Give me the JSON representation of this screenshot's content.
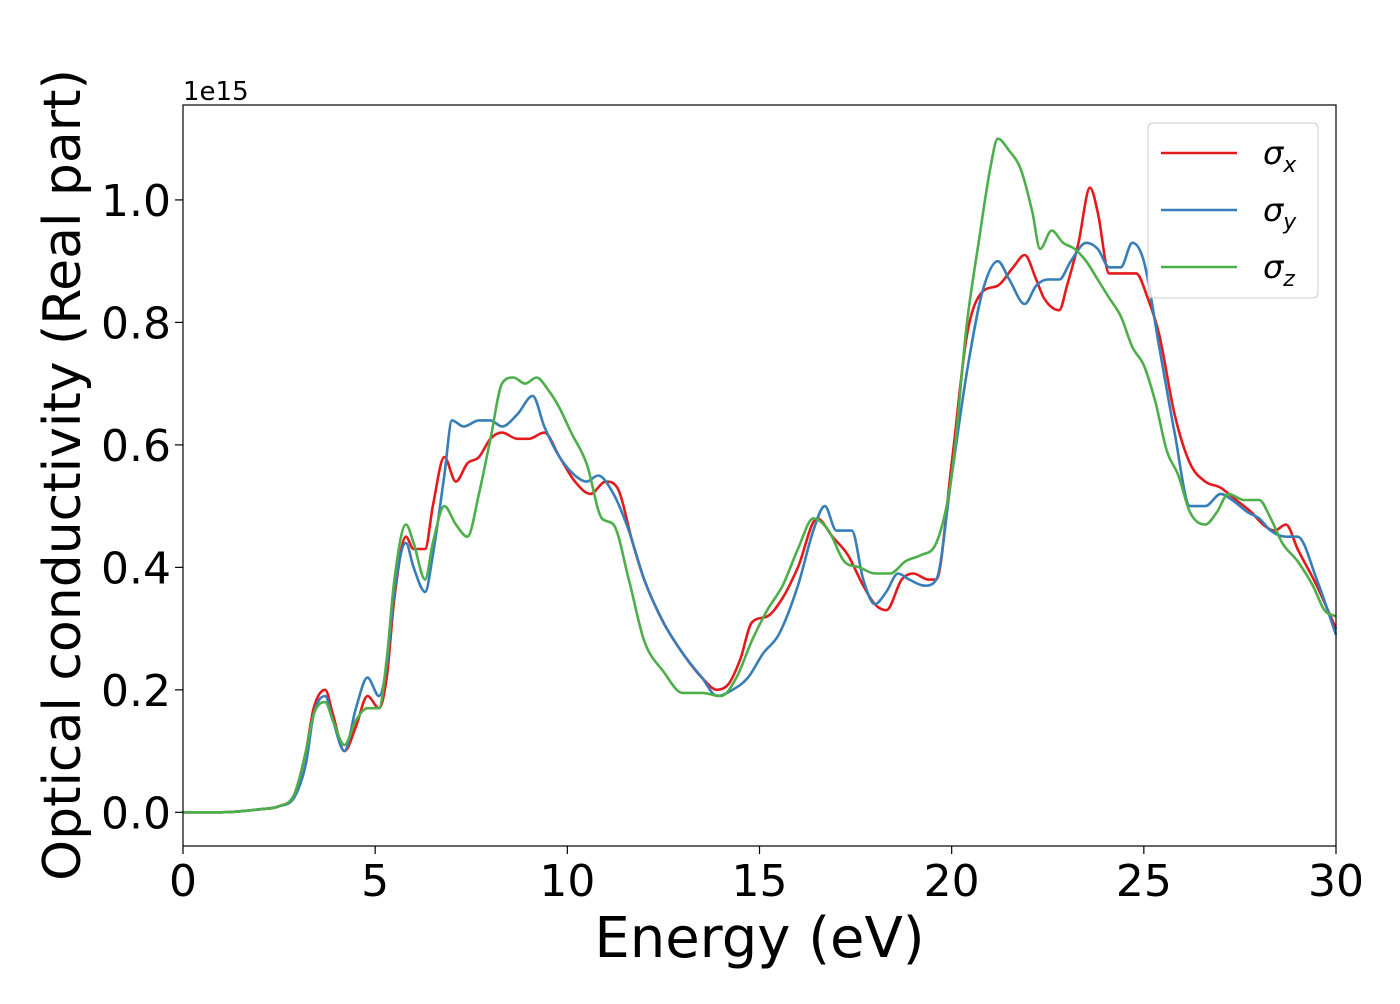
{
  "chart_data": {
    "type": "line",
    "xlabel": "Energy (eV)",
    "ylabel": "Optical conductivity (Real part)",
    "y_offset_label": "1e15",
    "xlim": [
      0,
      30
    ],
    "ylim": [
      -0.055,
      1.155
    ],
    "xticks": [
      0,
      5,
      10,
      15,
      20,
      25,
      30
    ],
    "xtick_labels": [
      "0",
      "5",
      "10",
      "15",
      "20",
      "25",
      "30"
    ],
    "yticks": [
      0.0,
      0.2,
      0.4,
      0.6,
      0.8,
      1.0
    ],
    "ytick_labels": [
      "0.0",
      "0.2",
      "0.4",
      "0.6",
      "0.8",
      "1.0"
    ],
    "grid": false,
    "legend_position": "top-right",
    "series": [
      {
        "name": "σ",
        "subscript": "x",
        "color": "#e41a1c",
        "x": [
          0,
          1,
          2,
          2.5,
          2.9,
          3.2,
          3.4,
          3.7,
          3.9,
          4.2,
          4.5,
          4.8,
          5.1,
          5.3,
          5.5,
          5.8,
          6.0,
          6.3,
          6.5,
          6.8,
          7.1,
          7.4,
          7.7,
          8.0,
          8.3,
          8.7,
          9.0,
          9.4,
          9.8,
          10.2,
          10.6,
          11.0,
          11.3,
          11.7,
          12.0,
          12.5,
          13.0,
          13.5,
          13.9,
          14.2,
          14.5,
          14.8,
          15.2,
          15.6,
          16.0,
          16.5,
          16.9,
          17.3,
          17.7,
          18.0,
          18.3,
          18.7,
          19.0,
          19.4,
          19.6,
          20.0,
          20.4,
          20.8,
          21.2,
          21.6,
          21.9,
          22.2,
          22.4,
          22.8,
          23.0,
          23.3,
          23.6,
          23.8,
          24.1,
          24.4,
          24.8,
          25.1,
          25.4,
          25.8,
          26.2,
          26.6,
          27.0,
          27.4,
          27.8,
          28.1,
          28.4,
          28.7,
          29.0,
          29.5,
          30.0
        ],
        "y": [
          0.0,
          0.0,
          0.005,
          0.01,
          0.03,
          0.1,
          0.17,
          0.2,
          0.16,
          0.1,
          0.14,
          0.19,
          0.17,
          0.22,
          0.35,
          0.45,
          0.43,
          0.43,
          0.5,
          0.58,
          0.54,
          0.57,
          0.58,
          0.61,
          0.62,
          0.61,
          0.61,
          0.62,
          0.58,
          0.54,
          0.52,
          0.54,
          0.53,
          0.44,
          0.38,
          0.31,
          0.26,
          0.22,
          0.2,
          0.21,
          0.25,
          0.31,
          0.32,
          0.35,
          0.4,
          0.48,
          0.45,
          0.42,
          0.37,
          0.34,
          0.33,
          0.38,
          0.39,
          0.38,
          0.38,
          0.57,
          0.78,
          0.85,
          0.86,
          0.89,
          0.91,
          0.87,
          0.84,
          0.82,
          0.86,
          0.93,
          1.02,
          0.98,
          0.88,
          0.88,
          0.88,
          0.84,
          0.78,
          0.65,
          0.57,
          0.54,
          0.53,
          0.51,
          0.49,
          0.47,
          0.46,
          0.47,
          0.43,
          0.37,
          0.3
        ]
      },
      {
        "name": "σ",
        "subscript": "y",
        "color": "#377eb8",
        "x": [
          0,
          1,
          2,
          2.5,
          2.9,
          3.2,
          3.4,
          3.7,
          3.9,
          4.2,
          4.5,
          4.8,
          5.1,
          5.3,
          5.5,
          5.8,
          6.0,
          6.3,
          6.5,
          6.8,
          7.0,
          7.3,
          7.7,
          8.0,
          8.3,
          8.7,
          9.1,
          9.4,
          9.8,
          10.2,
          10.5,
          10.8,
          11.2,
          11.6,
          12.0,
          12.5,
          13.0,
          13.5,
          13.9,
          14.3,
          14.7,
          15.1,
          15.5,
          16.0,
          16.4,
          16.7,
          17.0,
          17.4,
          17.7,
          18.0,
          18.3,
          18.6,
          18.9,
          19.3,
          19.6,
          20.0,
          20.4,
          20.8,
          21.2,
          21.5,
          21.9,
          22.2,
          22.5,
          22.8,
          23.1,
          23.5,
          23.8,
          24.1,
          24.4,
          24.7,
          25.0,
          25.4,
          25.8,
          26.2,
          26.6,
          27.0,
          27.3,
          27.7,
          28.0,
          28.3,
          28.7,
          29.0,
          29.5,
          30.0
        ],
        "y": [
          0.0,
          0.0,
          0.005,
          0.01,
          0.025,
          0.08,
          0.16,
          0.19,
          0.15,
          0.1,
          0.17,
          0.22,
          0.19,
          0.24,
          0.36,
          0.44,
          0.4,
          0.36,
          0.42,
          0.55,
          0.64,
          0.63,
          0.64,
          0.64,
          0.63,
          0.65,
          0.68,
          0.63,
          0.58,
          0.55,
          0.54,
          0.55,
          0.52,
          0.46,
          0.38,
          0.31,
          0.26,
          0.22,
          0.19,
          0.2,
          0.22,
          0.26,
          0.29,
          0.37,
          0.46,
          0.5,
          0.46,
          0.46,
          0.38,
          0.34,
          0.36,
          0.39,
          0.38,
          0.37,
          0.38,
          0.55,
          0.72,
          0.85,
          0.9,
          0.87,
          0.83,
          0.86,
          0.87,
          0.87,
          0.9,
          0.93,
          0.92,
          0.89,
          0.89,
          0.93,
          0.9,
          0.76,
          0.62,
          0.5,
          0.5,
          0.52,
          0.51,
          0.49,
          0.48,
          0.46,
          0.45,
          0.45,
          0.38,
          0.29
        ]
      },
      {
        "name": "σ",
        "subscript": "z",
        "color": "#4daf4a",
        "x": [
          0,
          1,
          2,
          2.5,
          2.9,
          3.2,
          3.4,
          3.7,
          3.9,
          4.2,
          4.5,
          4.8,
          5.1,
          5.3,
          5.5,
          5.8,
          6.0,
          6.3,
          6.5,
          6.8,
          7.1,
          7.4,
          7.7,
          8.0,
          8.3,
          8.6,
          8.9,
          9.2,
          9.5,
          9.8,
          10.1,
          10.5,
          10.9,
          11.2,
          11.6,
          12.0,
          12.5,
          13.0,
          13.5,
          14.0,
          14.4,
          14.8,
          15.2,
          15.6,
          16.0,
          16.4,
          16.8,
          17.2,
          17.6,
          18.0,
          18.4,
          18.8,
          19.2,
          19.6,
          20.0,
          20.4,
          20.7,
          21.0,
          21.2,
          21.5,
          21.8,
          22.1,
          22.3,
          22.6,
          22.9,
          23.2,
          23.5,
          23.8,
          24.1,
          24.4,
          24.7,
          25.0,
          25.3,
          25.6,
          25.9,
          26.2,
          26.6,
          26.9,
          27.2,
          27.6,
          28.0,
          28.3,
          28.6,
          29.0,
          29.4,
          29.7,
          30.0
        ],
        "y": [
          0.0,
          0.0,
          0.005,
          0.01,
          0.03,
          0.1,
          0.16,
          0.18,
          0.15,
          0.11,
          0.15,
          0.17,
          0.17,
          0.25,
          0.38,
          0.47,
          0.44,
          0.38,
          0.44,
          0.5,
          0.47,
          0.45,
          0.52,
          0.61,
          0.7,
          0.71,
          0.7,
          0.71,
          0.69,
          0.66,
          0.62,
          0.57,
          0.48,
          0.47,
          0.38,
          0.28,
          0.23,
          0.195,
          0.195,
          0.19,
          0.22,
          0.28,
          0.33,
          0.37,
          0.43,
          0.48,
          0.46,
          0.41,
          0.4,
          0.39,
          0.39,
          0.41,
          0.42,
          0.44,
          0.55,
          0.8,
          0.93,
          1.05,
          1.1,
          1.08,
          1.05,
          0.98,
          0.92,
          0.95,
          0.93,
          0.92,
          0.9,
          0.87,
          0.84,
          0.81,
          0.76,
          0.73,
          0.67,
          0.59,
          0.55,
          0.49,
          0.47,
          0.49,
          0.52,
          0.51,
          0.51,
          0.48,
          0.44,
          0.41,
          0.37,
          0.33,
          0.32
        ]
      }
    ]
  }
}
